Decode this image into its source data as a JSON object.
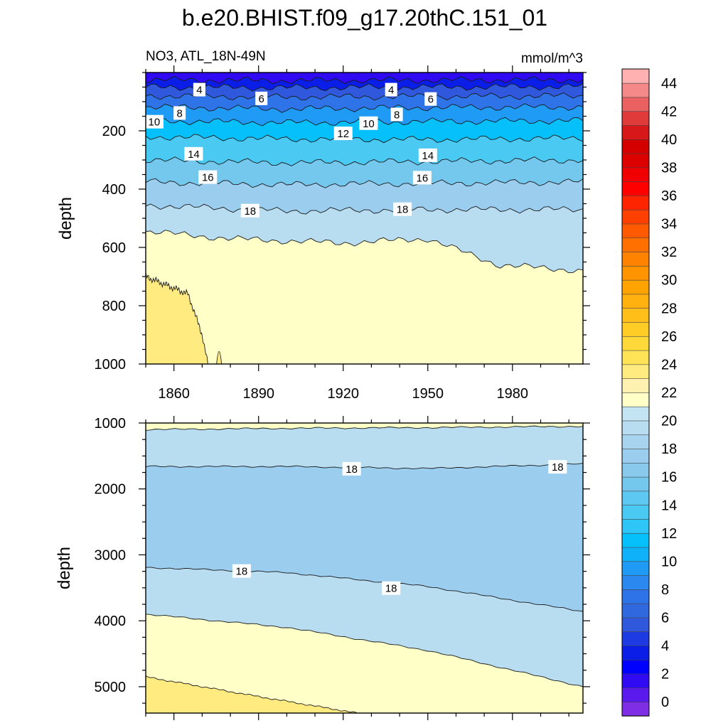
{
  "chart_data": {
    "type": "contour",
    "title": "b.e20.BHIST.f09_g17.20thC.151_01",
    "variable": "NO3, ATL_18N-49N",
    "units": "mmol/m^3",
    "xticks": [
      "1860",
      "1890",
      "1920",
      "1950",
      "1980"
    ],
    "xlim": [
      1850,
      2005
    ],
    "panels": [
      {
        "name": "upper",
        "ylabel": "depth",
        "ylim": [
          0,
          1000
        ],
        "yticks": [
          "200",
          "400",
          "600",
          "800",
          "1000"
        ],
        "levels": [
          {
            "low": 0,
            "high": 2,
            "boundary": null
          },
          {
            "low": 2,
            "high": 4,
            "boundary": [
              [
                1850,
                25
              ],
              [
                1900,
                28
              ],
              [
                1950,
                26
              ],
              [
                2005,
                25
              ]
            ]
          },
          {
            "low": 4,
            "high": 6,
            "boundary": [
              [
                1850,
                50
              ],
              [
                1900,
                52
              ],
              [
                1950,
                50
              ],
              [
                2005,
                48
              ]
            ]
          },
          {
            "low": 6,
            "high": 8,
            "boundary": [
              [
                1850,
                80
              ],
              [
                1900,
                84
              ],
              [
                1950,
                82
              ],
              [
                2005,
                80
              ]
            ]
          },
          {
            "low": 8,
            "high": 10,
            "boundary": [
              [
                1850,
                118
              ],
              [
                1900,
                125
              ],
              [
                1950,
                120
              ],
              [
                2005,
                118
              ]
            ]
          },
          {
            "low": 10,
            "high": 12,
            "boundary": [
              [
                1850,
                165
              ],
              [
                1900,
                172
              ],
              [
                1950,
                168
              ],
              [
                2005,
                165
              ]
            ]
          },
          {
            "low": 12,
            "high": 14,
            "boundary": [
              [
                1850,
                220
              ],
              [
                1900,
                228
              ],
              [
                1950,
                230
              ],
              [
                2005,
                225
              ]
            ]
          },
          {
            "low": 14,
            "high": 16,
            "boundary": [
              [
                1850,
                300
              ],
              [
                1900,
                310
              ],
              [
                1950,
                305
              ],
              [
                2005,
                300
              ]
            ]
          },
          {
            "low": 16,
            "high": 18,
            "boundary": [
              [
                1850,
                375
              ],
              [
                1900,
                385
              ],
              [
                1950,
                380
              ],
              [
                2005,
                375
              ]
            ]
          },
          {
            "low": 18,
            "high": 20,
            "boundary": [
              [
                1850,
                455
              ],
              [
                1900,
                475
              ],
              [
                1950,
                470
              ],
              [
                2005,
                470
              ]
            ]
          },
          {
            "low": 20,
            "high": 22,
            "boundary": [
              [
                1850,
                545
              ],
              [
                1880,
                570
              ],
              [
                1920,
                585
              ],
              [
                1950,
                570
              ],
              [
                1975,
                660
              ],
              [
                2005,
                680
              ]
            ]
          },
          {
            "low": 22,
            "high": 24,
            "boundary": [
              [
                1850,
                700
              ],
              [
                1865,
                760
              ],
              [
                1870,
                900
              ],
              [
                1872,
                1000
              ]
            ]
          }
        ],
        "contour_labels": [
          {
            "text": "4",
            "x": 1869,
            "y": 60
          },
          {
            "text": "4",
            "x": 1937,
            "y": 60
          },
          {
            "text": "6",
            "x": 1891,
            "y": 90
          },
          {
            "text": "6",
            "x": 1951,
            "y": 92
          },
          {
            "text": "8",
            "x": 1862,
            "y": 140
          },
          {
            "text": "8",
            "x": 1939,
            "y": 145
          },
          {
            "text": "10",
            "x": 1853,
            "y": 170
          },
          {
            "text": "10",
            "x": 1929,
            "y": 175
          },
          {
            "text": "12",
            "x": 1920,
            "y": 210
          },
          {
            "text": "14",
            "x": 1867,
            "y": 280
          },
          {
            "text": "14",
            "x": 1950,
            "y": 285
          },
          {
            "text": "16",
            "x": 1872,
            "y": 360
          },
          {
            "text": "16",
            "x": 1948,
            "y": 362
          },
          {
            "text": "18",
            "x": 1887,
            "y": 475
          },
          {
            "text": "18",
            "x": 1941,
            "y": 470
          }
        ]
      },
      {
        "name": "lower",
        "ylabel": "depth",
        "ylim": [
          1000,
          5400
        ],
        "yticks": [
          "1000",
          "2000",
          "3000",
          "4000",
          "5000"
        ],
        "levels": [
          {
            "low": 20,
            "high": 22,
            "boundary": null
          },
          {
            "low": 18,
            "high": 20,
            "boundary": [
              [
                1850,
                1100
              ],
              [
                1900,
                1080
              ],
              [
                1950,
                1070
              ],
              [
                2005,
                1050
              ]
            ]
          },
          {
            "low": 16,
            "high": 18,
            "boundary": [
              [
                1850,
                1660
              ],
              [
                1900,
                1660
              ],
              [
                1950,
                1690
              ],
              [
                2005,
                1620
              ]
            ]
          },
          {
            "low": 18,
            "high": 20,
            "boundary": [
              [
                1850,
                3190
              ],
              [
                1900,
                3270
              ],
              [
                1950,
                3480
              ],
              [
                2005,
                3860
              ]
            ]
          },
          {
            "low": 20,
            "high": 22,
            "boundary": [
              [
                1850,
                3900
              ],
              [
                1900,
                4100
              ],
              [
                1950,
                4450
              ],
              [
                2005,
                5000
              ]
            ]
          },
          {
            "low": 22,
            "high": 24,
            "boundary": [
              [
                1850,
                4850
              ],
              [
                1890,
                5150
              ],
              [
                1925,
                5400
              ]
            ]
          }
        ],
        "contour_labels": [
          {
            "text": "18",
            "x": 1923,
            "y": 1700
          },
          {
            "text": "18",
            "x": 1996,
            "y": 1670
          },
          {
            "text": "18",
            "x": 1884,
            "y": 3250
          },
          {
            "text": "18",
            "x": 1937,
            "y": 3510
          }
        ]
      }
    ],
    "colorbar": {
      "labels": [
        "0",
        "2",
        "4",
        "6",
        "8",
        "10",
        "12",
        "14",
        "16",
        "18",
        "20",
        "22",
        "24",
        "26",
        "28",
        "30",
        "32",
        "34",
        "36",
        "38",
        "40",
        "42",
        "44"
      ],
      "colors": [
        "#7f2ee5",
        "#5a19ed",
        "#2f0af2",
        "#0000ff",
        "#0a1ee8",
        "#1e3ae2",
        "#2f58dc",
        "#3068e0",
        "#2e74e8",
        "#2a88ee",
        "#1f9bf5",
        "#0fb2f8",
        "#06c0fb",
        "#2ec6f6",
        "#4ac9f3",
        "#5dc8f2",
        "#74c8ee",
        "#89c9ec",
        "#9bcdef",
        "#a8d4f0",
        "#b8ddf0",
        "#c3e4f2",
        "#ffffc8",
        "#fff2b0",
        "#ffeb80",
        "#ffe357",
        "#ffd93a",
        "#ffcd26",
        "#ffbf1a",
        "#ffb10f",
        "#ffa300",
        "#ff9400",
        "#ff8200",
        "#ff7000",
        "#ff5a00",
        "#ff4000",
        "#ff2400",
        "#ff0000",
        "#f00000",
        "#dc0000",
        "#d40000",
        "#d81818",
        "#e03a3a",
        "#eb6060",
        "#f58888",
        "#ffb0b0"
      ]
    }
  }
}
